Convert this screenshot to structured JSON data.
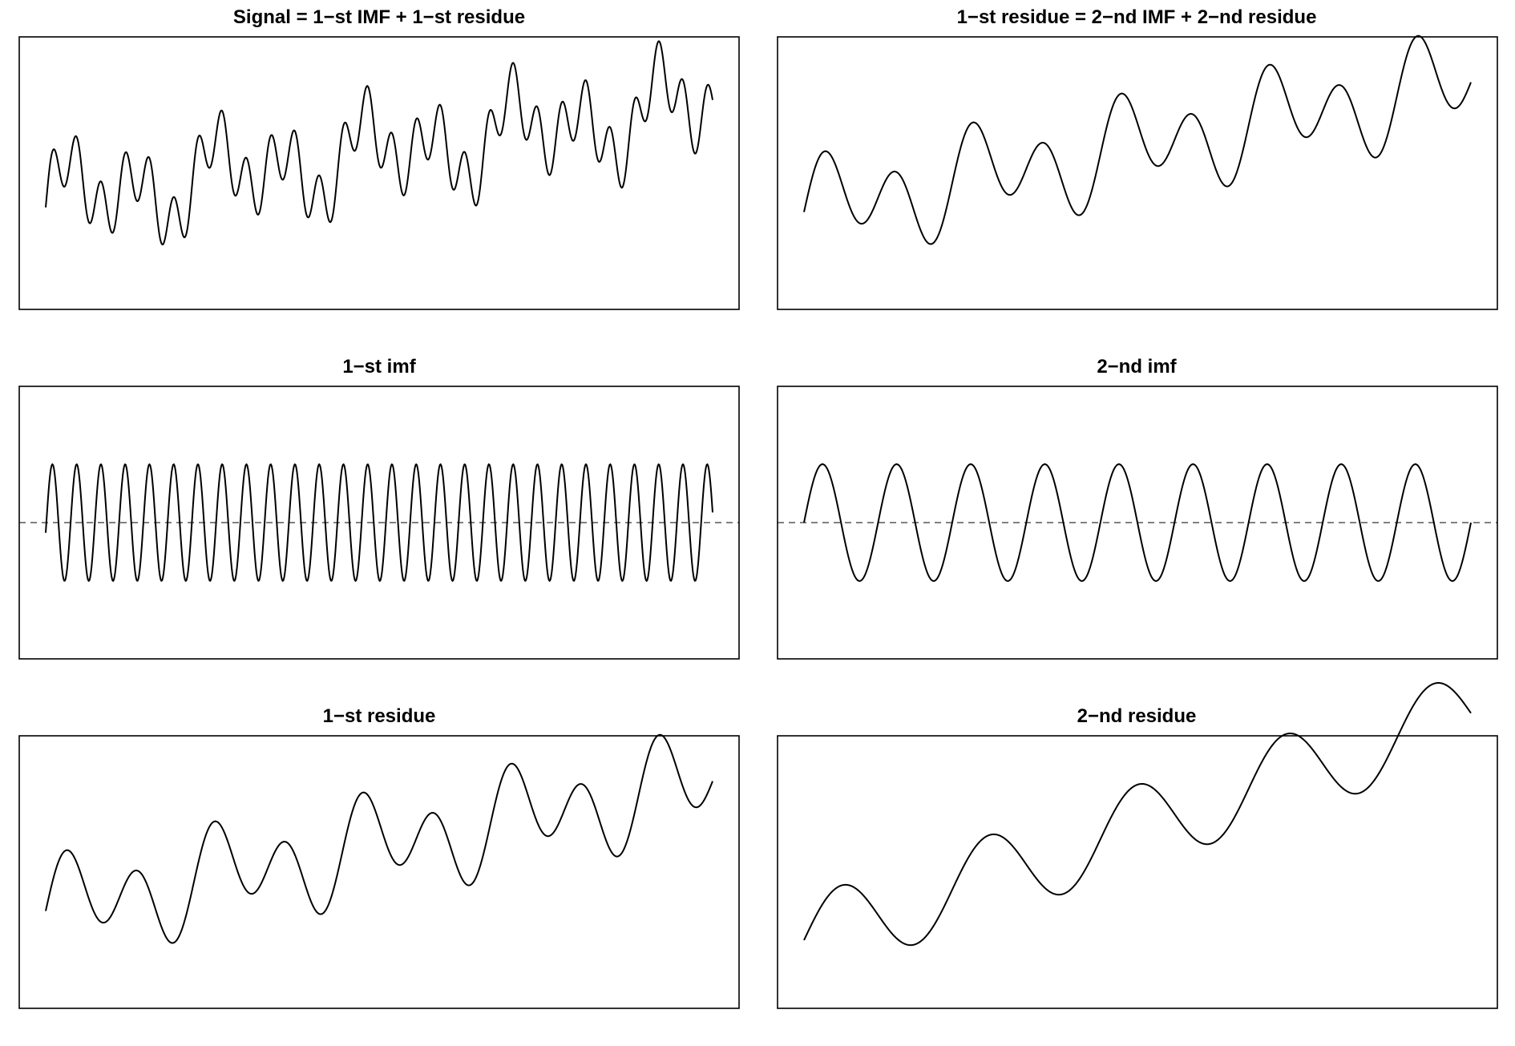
{
  "chart_data": [
    {
      "type": "line",
      "title": "Signal = 1−st IMF + 1−st residue",
      "xlabel": "",
      "ylabel": "",
      "x_range": [
        0,
        1
      ],
      "ylim": [
        -2.6,
        3.0
      ],
      "grid": false,
      "zero_line": false,
      "components": [
        "imf1",
        "imf2",
        "trend"
      ]
    },
    {
      "type": "line",
      "title": "1−st residue = 2−nd IMF + 2−nd residue",
      "xlabel": "",
      "ylabel": "",
      "x_range": [
        0,
        1
      ],
      "ylim": [
        -1.9,
        2.3
      ],
      "grid": false,
      "zero_line": false,
      "components": [
        "imf2",
        "trend"
      ]
    },
    {
      "type": "line",
      "title": "1−st imf",
      "xlabel": "",
      "ylabel": "",
      "x_range": [
        0,
        1
      ],
      "ylim": [
        -1.4,
        1.4
      ],
      "grid": false,
      "zero_line": true,
      "components": [
        "imf1"
      ]
    },
    {
      "type": "line",
      "title": "2−nd imf",
      "xlabel": "",
      "ylabel": "",
      "x_range": [
        0,
        1
      ],
      "ylim": [
        -1.4,
        1.4
      ],
      "grid": false,
      "zero_line": true,
      "components": [
        "imf2"
      ]
    },
    {
      "type": "line",
      "title": "1−st residue",
      "xlabel": "",
      "ylabel": "",
      "x_range": [
        0,
        1
      ],
      "ylim": [
        -1.9,
        2.3
      ],
      "grid": false,
      "zero_line": false,
      "components": [
        "imf2",
        "trend"
      ]
    },
    {
      "type": "line",
      "title": "2−nd residue",
      "xlabel": "",
      "ylabel": "",
      "x_range": [
        0,
        1
      ],
      "ylim": [
        -1.0,
        1.4
      ],
      "grid": false,
      "zero_line": false,
      "components": [
        "trend"
      ]
    }
  ],
  "series_models": {
    "imf1": {
      "form": "sine",
      "amplitude": 0.6,
      "cycles": 27.5,
      "phase_deg": -10
    },
    "imf2": {
      "form": "sine",
      "amplitude": 0.6,
      "cycles": 9,
      "phase_deg": 0
    },
    "trend": {
      "form": "linear+sine",
      "start": -0.4,
      "slope": 2.0,
      "amplitude": 0.37,
      "cycles": 4.5,
      "phase_deg": 0
    }
  }
}
